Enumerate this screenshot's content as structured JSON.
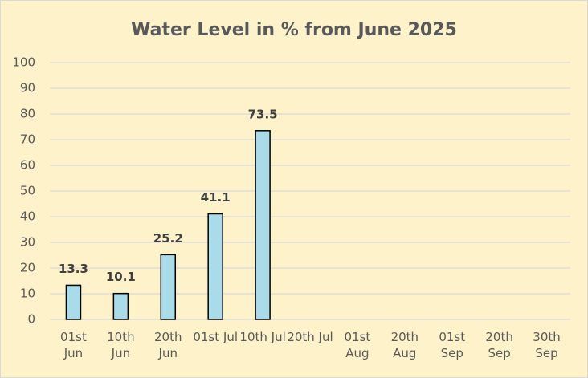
{
  "chart_data": {
    "type": "bar",
    "title": "Water Level in % from June 2025",
    "categories": [
      "01st Jun",
      "10th Jun",
      "20th Jun",
      "01st Jul",
      "10th Jul",
      "20th Jul",
      "01st Aug",
      "20th Aug",
      "01st Sep",
      "20th Sep",
      "30th Sep"
    ],
    "values": [
      13.3,
      10.1,
      25.2,
      41.1,
      73.5,
      null,
      null,
      null,
      null,
      null,
      null
    ],
    "color": "#a9dbe8",
    "ylim": [
      0,
      100
    ],
    "yticks": [
      0,
      10,
      20,
      30,
      40,
      50,
      60,
      70,
      80,
      90,
      100
    ],
    "grid": true
  }
}
